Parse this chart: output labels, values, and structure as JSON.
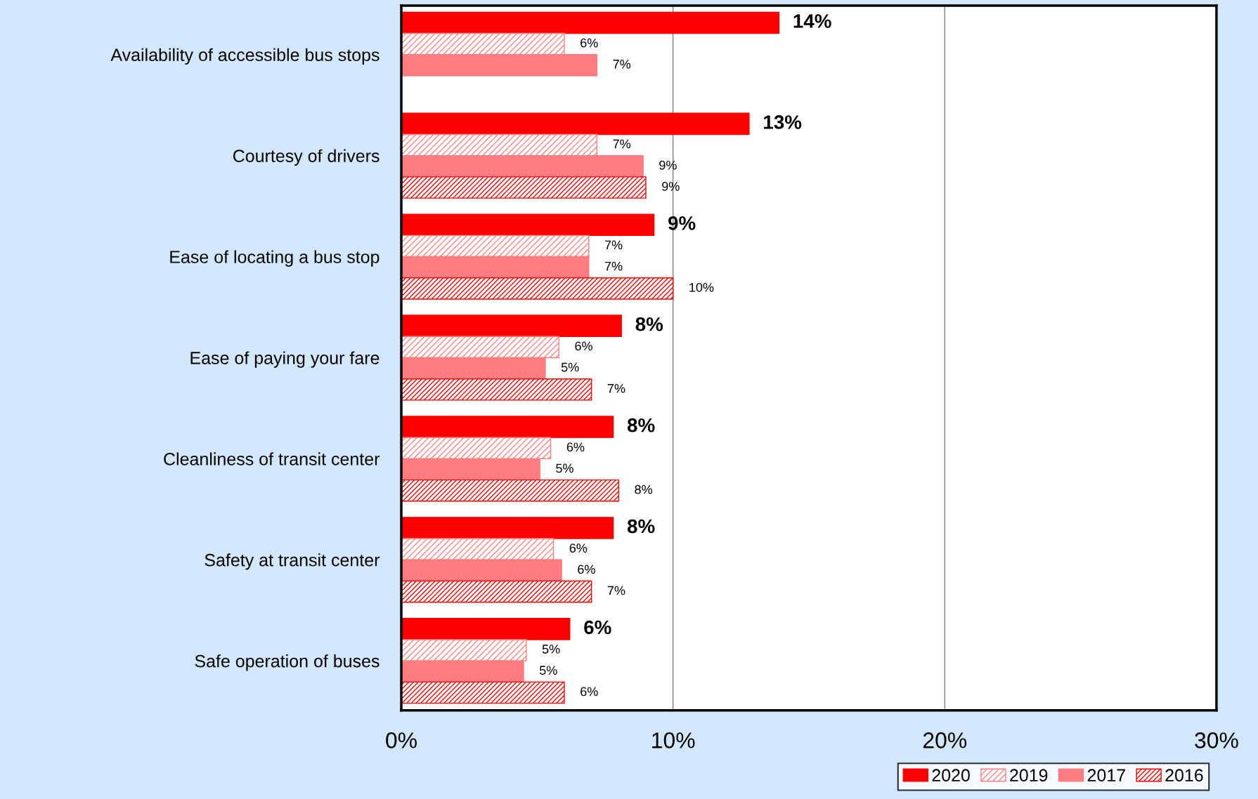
{
  "chart_data": {
    "type": "bar",
    "orientation": "horizontal",
    "categories": [
      "Availability of accessible bus stops",
      "Courtesy of drivers",
      "Ease of locating a bus stop",
      "Ease of paying your fare",
      "Cleanliness of transit center",
      "Safety at transit center",
      "Safe operation of buses"
    ],
    "series": [
      {
        "name": "2020",
        "color": "#ff0000",
        "values": [
          13.9,
          12.8,
          9.3,
          8.1,
          7.8,
          7.8,
          6.2
        ],
        "value_labels": [
          "14%",
          "13%",
          "9%",
          "8%",
          "8%",
          "8%",
          "6%"
        ]
      },
      {
        "name": "2019",
        "color": "#ff8080",
        "values": [
          6.0,
          7.2,
          6.9,
          5.8,
          5.5,
          5.6,
          4.6
        ],
        "value_labels": [
          "6%",
          "7%",
          "7%",
          "6%",
          "6%",
          "6%",
          "5%"
        ]
      },
      {
        "name": "2017",
        "color": "#ff7c80",
        "values": [
          7.2,
          8.9,
          6.9,
          5.3,
          5.1,
          5.9,
          4.5
        ],
        "value_labels": [
          "7%",
          "9%",
          "7%",
          "5%",
          "5%",
          "6%",
          "5%"
        ]
      },
      {
        "name": "2016",
        "color": "#ff0000",
        "values": [
          null,
          9.0,
          10.0,
          7.0,
          8.0,
          7.0,
          6.0
        ],
        "value_labels": [
          null,
          "9%",
          "10%",
          "7%",
          "8%",
          "7%",
          "6%"
        ]
      }
    ],
    "xlim": [
      0,
      30
    ],
    "xticks": [
      {
        "value": 0,
        "label": "0%"
      },
      {
        "value": 10,
        "label": "10%"
      },
      {
        "value": 20,
        "label": "20%"
      },
      {
        "value": 30,
        "label": "30%"
      }
    ],
    "grid": "x",
    "legend": "bottom right"
  }
}
